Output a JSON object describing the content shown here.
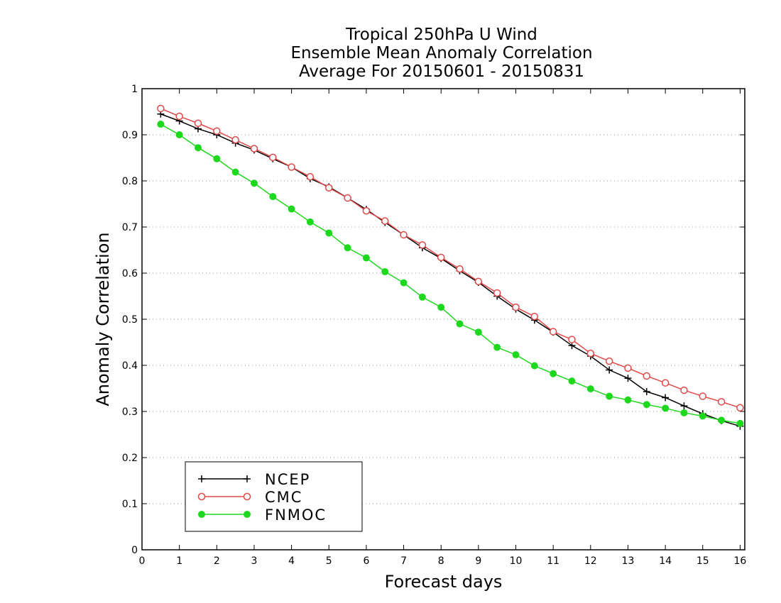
{
  "chart_data": {
    "type": "line",
    "title_lines": [
      "Tropical 250hPa U Wind",
      "Ensemble Mean Anomaly Correlation",
      "Average For 20150601 - 20150831"
    ],
    "xlabel": "Forecast days",
    "ylabel": "Anomaly Correlation",
    "xlim": [
      0,
      16.125
    ],
    "ylim": [
      0,
      1
    ],
    "xticks": [
      0,
      1,
      2,
      3,
      4,
      5,
      6,
      7,
      8,
      9,
      10,
      11,
      12,
      13,
      14,
      15,
      16
    ],
    "yticks": [
      0,
      0.1,
      0.2,
      0.3,
      0.4,
      0.5,
      0.6,
      0.7,
      0.8,
      0.9,
      1
    ],
    "xtick_labels": [
      "0",
      "1",
      "2",
      "3",
      "4",
      "5",
      "6",
      "7",
      "8",
      "9",
      "10",
      "11",
      "12",
      "13",
      "14",
      "15",
      "16"
    ],
    "ytick_labels": [
      "0",
      "0.1",
      "0.2",
      "0.3",
      "0.4",
      "0.5",
      "0.6",
      "0.7",
      "0.8",
      "0.9",
      "1"
    ],
    "grid": "horizontal-dotted",
    "legend_position": "bottom-left",
    "x": [
      0.5,
      1,
      1.5,
      2,
      2.5,
      3,
      3.5,
      4,
      4.5,
      5,
      5.5,
      6,
      6.5,
      7,
      7.5,
      8,
      8.5,
      9,
      9.5,
      10,
      10.5,
      11,
      11.5,
      12,
      12.5,
      13,
      13.5,
      14,
      14.5,
      15,
      15.5,
      16
    ],
    "series": [
      {
        "name": "NCEP",
        "color": "#000000",
        "marker": "plus",
        "values": [
          0.945,
          0.93,
          0.913,
          0.9,
          0.882,
          0.867,
          0.848,
          0.83,
          0.805,
          0.787,
          0.763,
          0.738,
          0.71,
          0.683,
          0.655,
          0.632,
          0.605,
          0.58,
          0.55,
          0.522,
          0.498,
          0.472,
          0.443,
          0.42,
          0.39,
          0.372,
          0.343,
          0.33,
          0.312,
          0.295,
          0.28,
          0.268
        ]
      },
      {
        "name": "CMC",
        "color": "#e04848",
        "marker": "open-circle",
        "values": [
          0.957,
          0.94,
          0.925,
          0.908,
          0.889,
          0.87,
          0.851,
          0.83,
          0.809,
          0.785,
          0.763,
          0.735,
          0.713,
          0.683,
          0.661,
          0.634,
          0.609,
          0.582,
          0.557,
          0.526,
          0.506,
          0.473,
          0.456,
          0.426,
          0.409,
          0.394,
          0.377,
          0.362,
          0.346,
          0.333,
          0.321,
          0.308
        ]
      },
      {
        "name": "FNMOC",
        "color": "#1ed81e",
        "marker": "filled-circle",
        "values": [
          0.923,
          0.9,
          0.872,
          0.848,
          0.819,
          0.795,
          0.766,
          0.739,
          0.711,
          0.687,
          0.655,
          0.633,
          0.603,
          0.579,
          0.548,
          0.526,
          0.49,
          0.472,
          0.439,
          0.423,
          0.399,
          0.382,
          0.366,
          0.349,
          0.333,
          0.325,
          0.315,
          0.307,
          0.297,
          0.29,
          0.281,
          0.274
        ]
      }
    ]
  }
}
